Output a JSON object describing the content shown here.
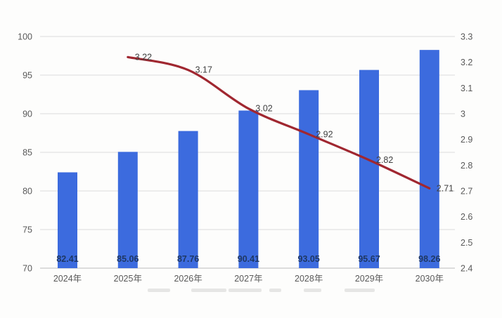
{
  "chart_data": {
    "type": "combo",
    "title": "",
    "categories": [
      "2024年",
      "2025年",
      "2026年",
      "2027年",
      "2028年",
      "2029年",
      "2030年"
    ],
    "series": [
      {
        "id": "bar-series",
        "type": "bar",
        "axis": "left",
        "color": "#3c6bde",
        "values": [
          82.41,
          85.06,
          87.76,
          90.41,
          93.05,
          95.67,
          98.26
        ],
        "data_labels": [
          "82.41",
          "85.06",
          "87.76",
          "90.41",
          "93.05",
          "95.67",
          "98.26"
        ],
        "label_color": "#1f3864"
      },
      {
        "id": "line-series",
        "type": "line",
        "axis": "right",
        "color": "#a02730",
        "values": [
          null,
          3.22,
          3.17,
          3.02,
          2.92,
          2.82,
          2.71
        ],
        "data_labels": [
          null,
          "3.22",
          "3.17",
          "3.02",
          "2.92",
          "2.82",
          "2.71"
        ],
        "label_color": "#3f3f3f"
      }
    ],
    "left_axis": {
      "min": 70,
      "max": 100,
      "step": 5,
      "tick_labels": [
        "100",
        "95",
        "90",
        "85",
        "80",
        "75",
        "70"
      ]
    },
    "right_axis": {
      "min": 2.4,
      "max": 3.3,
      "step": 0.1,
      "tick_labels": [
        "3.3",
        "3.2",
        "3.1",
        "3",
        "2.9",
        "2.8",
        "2.7",
        "2.6",
        "2.5",
        "2.4"
      ]
    },
    "grid": {
      "show": true,
      "color": "#dcdcdc",
      "aligned_to": "left_axis"
    },
    "axis_line_color": "#c9c9c9",
    "tick_label_color": "#595959",
    "category_label_color": "#595959",
    "legend_position": "none",
    "blurred_caption_segments": [
      [
        210,
        32
      ],
      [
        272,
        50
      ],
      [
        325,
        47
      ],
      [
        383,
        17
      ],
      [
        432,
        25
      ],
      [
        490,
        43
      ]
    ]
  }
}
